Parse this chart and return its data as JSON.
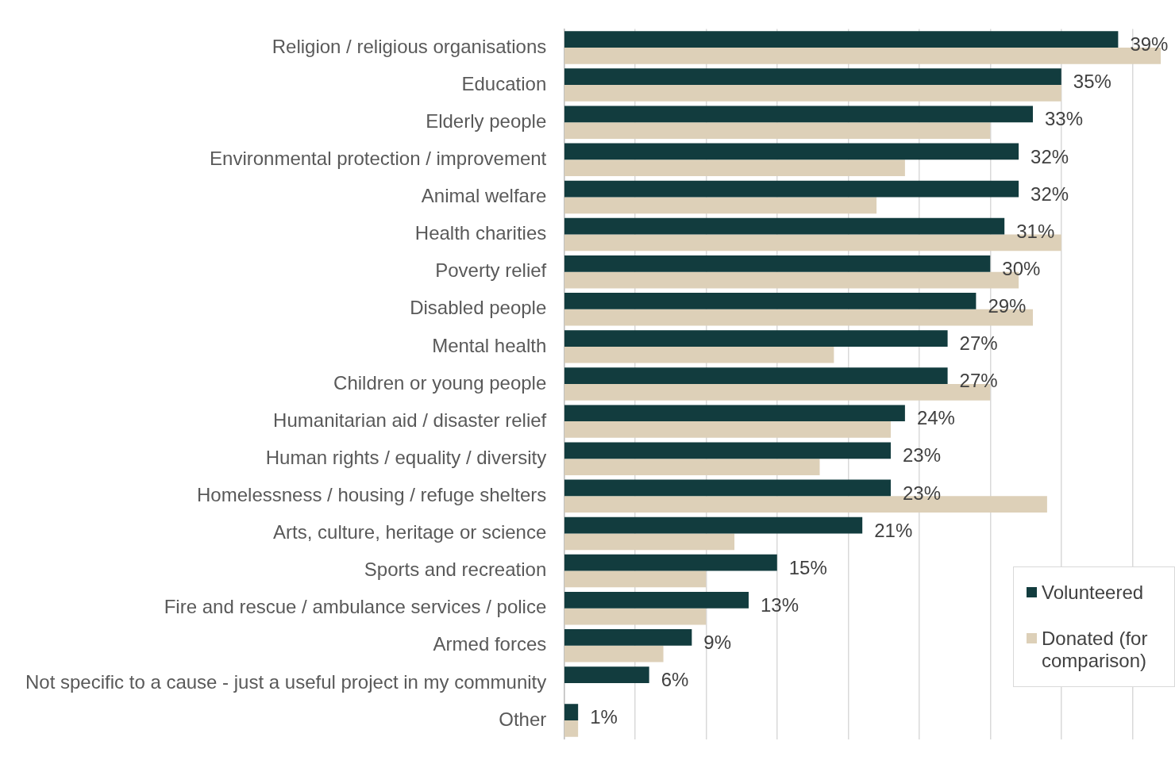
{
  "chart_data": {
    "type": "bar",
    "orientation": "horizontal",
    "categories": [
      "Religion / religious organisations",
      "Education",
      "Elderly people",
      "Environmental protection / improvement",
      "Animal welfare",
      "Health charities",
      "Poverty relief",
      "Disabled people",
      "Mental health",
      "Children or young people",
      "Humanitarian aid / disaster relief",
      "Human rights / equality / diversity",
      "Homelessness / housing / refuge shelters",
      "Arts, culture, heritage or science",
      "Sports and recreation",
      "Fire and rescue / ambulance services / police",
      "Armed forces",
      "Not specific to a cause - just a useful project in my community",
      "Other"
    ],
    "series": [
      {
        "name": "Volunteered",
        "color": "#123c3e",
        "values": [
          39,
          35,
          33,
          32,
          32,
          31,
          30,
          29,
          27,
          27,
          24,
          23,
          23,
          21,
          15,
          13,
          9,
          6,
          1
        ],
        "value_labels": [
          "39%",
          "35%",
          "33%",
          "32%",
          "32%",
          "31%",
          "30%",
          "29%",
          "27%",
          "27%",
          "24%",
          "23%",
          "23%",
          "21%",
          "15%",
          "13%",
          "9%",
          "6%",
          "1%"
        ]
      },
      {
        "name": "Donated (for comparison)",
        "color": "#ddd0b8",
        "values": [
          42,
          35,
          30,
          24,
          22,
          35,
          32,
          33,
          19,
          30,
          23,
          18,
          34,
          12,
          10,
          10,
          7,
          null,
          1
        ]
      }
    ],
    "xlim": [
      0,
      43
    ],
    "xticks": [
      {
        "value": 0,
        "label": null
      },
      {
        "value": 5,
        "label": null
      },
      {
        "value": 10,
        "label": null
      },
      {
        "value": 15,
        "label": null
      },
      {
        "value": 20,
        "label": null
      },
      {
        "value": 25,
        "label": null
      },
      {
        "value": 30,
        "label": null
      },
      {
        "value": 35,
        "label": null
      },
      {
        "value": 40,
        "label": null
      }
    ],
    "tick_labels": "y",
    "grid": "x",
    "legend": "bottom right"
  }
}
